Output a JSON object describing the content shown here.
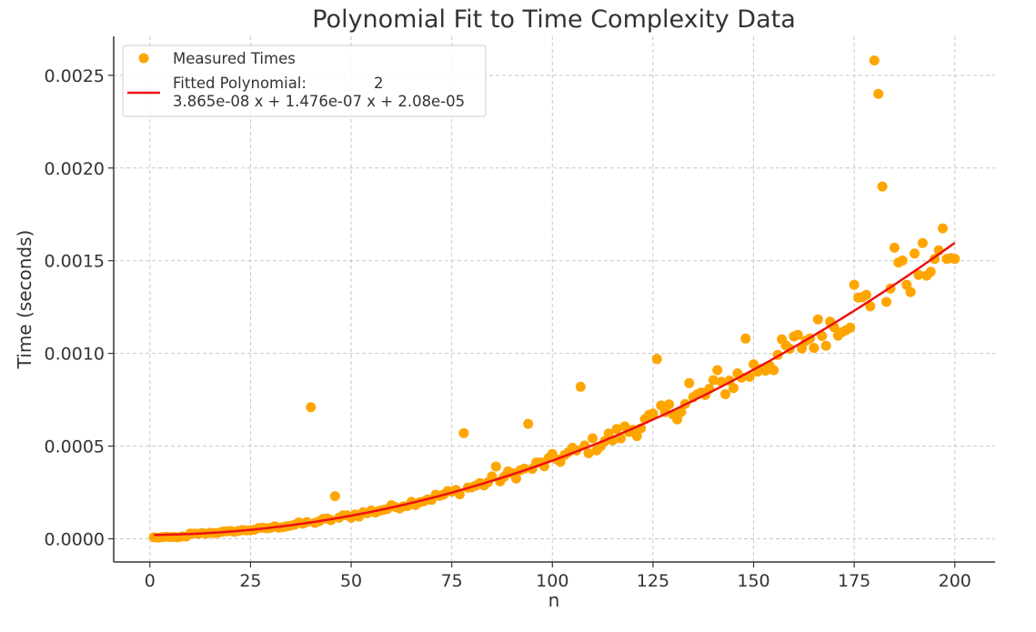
{
  "chart_data": {
    "type": "scatter",
    "title": "Polynomial Fit to Time Complexity Data",
    "xlabel": "n",
    "ylabel": "Time (seconds)",
    "xlim": [
      -9,
      210
    ],
    "ylim": [
      -0.000125,
      0.00271
    ],
    "xticks": [
      0,
      25,
      50,
      75,
      100,
      125,
      150,
      175,
      200
    ],
    "yticks": [
      0.0,
      0.0005,
      0.001,
      0.0015,
      0.002,
      0.0025
    ],
    "ytick_labels": [
      "0.0000",
      "0.0005",
      "0.0010",
      "0.0015",
      "0.0020",
      "0.0025"
    ],
    "grid": true,
    "legend_position": "top-left",
    "colors": {
      "points": "#FFA500",
      "fit": "#EE1111"
    },
    "legend": {
      "points_label": "Measured Times",
      "fit_label": "Fitted Polynomial:",
      "fit_exponent": "2",
      "fit_equation": "3.865e-08 x + 1.476e-07 x + 2.08e-05"
    },
    "fit": {
      "a": 3.865e-08,
      "b": 1.476e-07,
      "c": 2.08e-05,
      "x_range": [
        1,
        200
      ]
    },
    "outliers": [
      [
        40,
        0.00071
      ],
      [
        46,
        0.00023
      ],
      [
        78,
        0.00057
      ],
      [
        86,
        0.00039
      ],
      [
        94,
        0.00062
      ],
      [
        107,
        0.00082
      ],
      [
        126,
        0.00097
      ],
      [
        134,
        0.00084
      ],
      [
        141,
        0.00091
      ],
      [
        148,
        0.00108
      ],
      [
        175,
        0.00137
      ],
      [
        180,
        0.00258
      ],
      [
        181,
        0.0024
      ],
      [
        182,
        0.0019
      ],
      [
        185,
        0.00157
      ],
      [
        186,
        0.00149
      ],
      [
        195,
        0.00151
      ],
      [
        198,
        0.00151
      ],
      [
        200,
        0.00151
      ]
    ]
  }
}
